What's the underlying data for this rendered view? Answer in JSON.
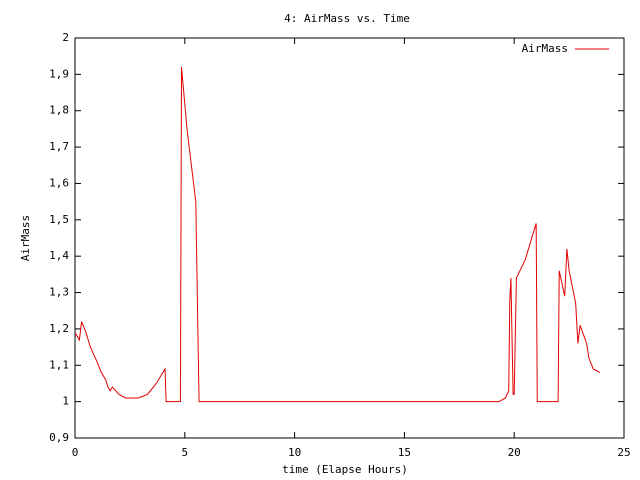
{
  "chart_data": {
    "type": "line",
    "title": "4: AirMass vs. Time",
    "xlabel": "time (Elapse Hours)",
    "ylabel": "AirMass",
    "x": [
      0,
      0.2,
      0.3,
      0.5,
      0.7,
      1.0,
      1.2,
      1.4,
      1.5,
      1.6,
      1.7,
      2.0,
      2.3,
      2.6,
      2.9,
      3.3,
      3.7,
      4.0,
      4.1,
      4.15,
      4.6,
      4.8,
      4.85,
      5.1,
      5.3,
      5.5,
      5.65,
      19.3,
      19.6,
      19.75,
      19.8,
      19.85,
      19.95,
      20.0,
      20.1,
      20.5,
      21.0,
      21.05,
      21.8,
      22.0,
      22.05,
      22.3,
      22.4,
      22.5,
      22.8,
      22.9,
      23.0,
      23.3,
      23.4,
      23.6,
      23.9
    ],
    "series": [
      {
        "name": "AirMass",
        "color": "#e00000",
        "values": [
          1.19,
          1.17,
          1.22,
          1.19,
          1.15,
          1.11,
          1.08,
          1.06,
          1.04,
          1.03,
          1.04,
          1.02,
          1.01,
          1.01,
          1.01,
          1.02,
          1.05,
          1.08,
          1.09,
          1.0,
          1.0,
          1.0,
          1.92,
          1.75,
          1.65,
          1.55,
          1.0,
          1.0,
          1.01,
          1.03,
          1.28,
          1.34,
          1.02,
          1.02,
          1.34,
          1.39,
          1.49,
          1.0,
          1.0,
          1.0,
          1.36,
          1.29,
          1.42,
          1.36,
          1.27,
          1.16,
          1.21,
          1.16,
          1.12,
          1.09,
          1.08
        ]
      }
    ],
    "xlim": [
      0,
      25
    ],
    "xticks": [
      0,
      5,
      10,
      15,
      20,
      25
    ],
    "ylim": [
      0.9,
      2
    ],
    "yticks": [
      {
        "value": 0.9,
        "label": "0,9"
      },
      1,
      {
        "value": 1.1,
        "label": "1,1"
      },
      {
        "value": 1.2,
        "label": "1,2"
      },
      {
        "value": 1.3,
        "label": "1,3"
      },
      {
        "value": 1.4,
        "label": "1,4"
      },
      {
        "value": 1.5,
        "label": "1,5"
      },
      {
        "value": 1.6,
        "label": "1,6"
      },
      {
        "value": 1.7,
        "label": "1,7"
      },
      {
        "value": 1.8,
        "label": "1,8"
      },
      {
        "value": 1.9,
        "label": "1,9"
      },
      2
    ],
    "legend": "top-right"
  }
}
